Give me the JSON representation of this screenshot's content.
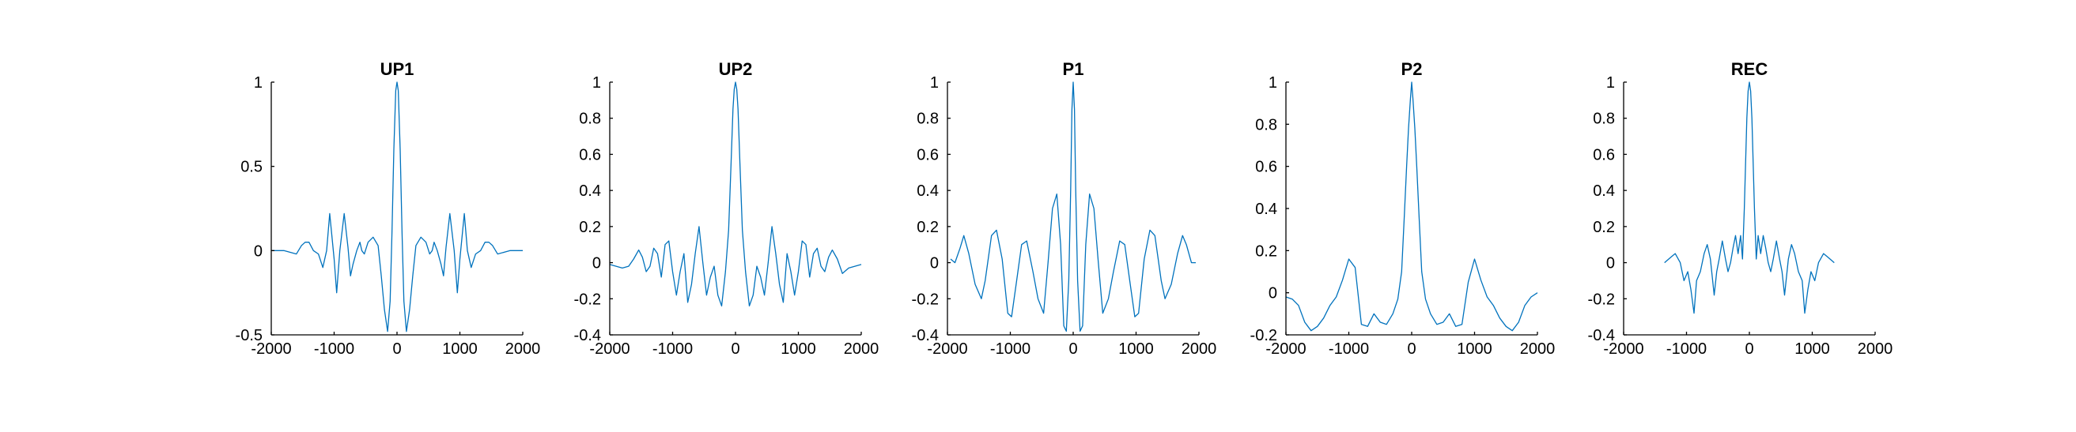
{
  "colors": {
    "series": "#0072BD",
    "axis": "#000000",
    "background": "#ffffff"
  },
  "chart_data": [
    {
      "type": "line",
      "title": "UP1",
      "xlabel": "",
      "ylabel": "",
      "grid": false,
      "xlim": [
        -2000,
        2000
      ],
      "ylim": [
        -0.5,
        1
      ],
      "xticks": [
        -2000,
        -1000,
        0,
        1000,
        2000
      ],
      "yticks": [
        -0.5,
        0,
        0.5,
        1
      ],
      "xtick_labels": [
        "-2000",
        "-1000",
        "0",
        "1000",
        "2000"
      ],
      "ytick_labels": [
        "-0.5",
        "0",
        "0.5",
        "1"
      ],
      "series": [
        {
          "x": [
            -2000,
            -1800,
            -1600,
            -1520,
            -1460,
            -1400,
            -1330,
            -1250,
            -1180,
            -1120,
            -1070,
            -1000,
            -960,
            -910,
            -840,
            -780,
            -740,
            -700,
            -640,
            -590,
            -560,
            -520,
            -460,
            -380,
            -300,
            -250,
            -200,
            -150,
            -110,
            -80,
            -50,
            -20,
            0,
            20,
            50,
            80,
            110,
            150,
            200,
            250,
            300,
            380,
            460,
            520,
            560,
            590,
            640,
            700,
            740,
            780,
            840,
            910,
            960,
            1000,
            1070,
            1120,
            1180,
            1250,
            1330,
            1400,
            1460,
            1520,
            1600,
            1800,
            2000
          ],
          "y": [
            0,
            0,
            -0.02,
            0.03,
            0.05,
            0.05,
            0.0,
            -0.02,
            -0.1,
            0.0,
            0.22,
            -0.05,
            -0.25,
            0.0,
            0.22,
            0.02,
            -0.15,
            -0.08,
            0.0,
            0.05,
            0.0,
            -0.02,
            0.05,
            0.08,
            0.03,
            -0.15,
            -0.35,
            -0.48,
            -0.3,
            0.1,
            0.6,
            0.95,
            1.0,
            0.95,
            0.6,
            0.1,
            -0.3,
            -0.48,
            -0.35,
            -0.15,
            0.03,
            0.08,
            0.05,
            -0.02,
            0.0,
            0.05,
            0.0,
            -0.08,
            -0.15,
            0.02,
            0.22,
            0.0,
            -0.25,
            -0.05,
            0.22,
            0.0,
            -0.1,
            -0.02,
            0.0,
            0.05,
            0.05,
            0.03,
            -0.02,
            0,
            0
          ]
        }
      ]
    },
    {
      "type": "line",
      "title": "UP2",
      "xlabel": "",
      "ylabel": "",
      "grid": false,
      "xlim": [
        -2000,
        2000
      ],
      "ylim": [
        -0.4,
        1
      ],
      "xticks": [
        -2000,
        -1000,
        0,
        1000,
        2000
      ],
      "yticks": [
        -0.4,
        -0.2,
        0,
        0.2,
        0.4,
        0.6,
        0.8,
        1
      ],
      "xtick_labels": [
        "-2000",
        "-1000",
        "0",
        "1000",
        "2000"
      ],
      "ytick_labels": [
        "-0.4",
        "-0.2",
        "0",
        "0.2",
        "0.4",
        "0.6",
        "0.8",
        "1"
      ],
      "series": [
        {
          "x": [
            -2000,
            -1900,
            -1800,
            -1700,
            -1620,
            -1540,
            -1480,
            -1420,
            -1360,
            -1300,
            -1240,
            -1180,
            -1120,
            -1060,
            -1000,
            -940,
            -880,
            -820,
            -760,
            -700,
            -640,
            -580,
            -520,
            -460,
            -400,
            -340,
            -280,
            -220,
            -160,
            -110,
            -70,
            -40,
            -20,
            0,
            20,
            40,
            70,
            110,
            160,
            220,
            280,
            340,
            400,
            460,
            520,
            580,
            640,
            700,
            760,
            820,
            880,
            940,
            1000,
            1060,
            1120,
            1180,
            1240,
            1300,
            1360,
            1420,
            1480,
            1540,
            1620,
            1700,
            1800,
            1900,
            2000
          ],
          "y": [
            -0.01,
            -0.02,
            -0.03,
            -0.02,
            0.02,
            0.07,
            0.03,
            -0.05,
            -0.02,
            0.08,
            0.05,
            -0.08,
            0.1,
            0.12,
            -0.05,
            -0.18,
            -0.05,
            0.05,
            -0.22,
            -0.12,
            0.05,
            0.2,
            0.0,
            -0.18,
            -0.08,
            -0.02,
            -0.18,
            -0.24,
            -0.05,
            0.18,
            0.55,
            0.85,
            0.96,
            1.0,
            0.96,
            0.85,
            0.55,
            0.18,
            -0.05,
            -0.24,
            -0.18,
            -0.02,
            -0.08,
            -0.18,
            0.0,
            0.2,
            0.05,
            -0.12,
            -0.22,
            0.05,
            -0.05,
            -0.18,
            -0.05,
            0.12,
            0.1,
            -0.08,
            0.05,
            0.08,
            -0.02,
            -0.05,
            0.03,
            0.07,
            0.02,
            -0.06,
            -0.03,
            -0.02,
            -0.01
          ]
        }
      ]
    },
    {
      "type": "line",
      "title": "P1",
      "xlabel": "",
      "ylabel": "",
      "grid": false,
      "xlim": [
        -2000,
        2000
      ],
      "ylim": [
        -0.4,
        1
      ],
      "xticks": [
        -2000,
        -1000,
        0,
        1000,
        2000
      ],
      "yticks": [
        -0.4,
        -0.2,
        0,
        0.2,
        0.4,
        0.6,
        0.8,
        1
      ],
      "xtick_labels": [
        "-2000",
        "-1000",
        "0",
        "1000",
        "2000"
      ],
      "ytick_labels": [
        "-0.4",
        "-0.2",
        "0",
        "0.2",
        "0.4",
        "0.6",
        "0.8",
        "1"
      ],
      "series": [
        {
          "x": [
            -1950,
            -1880,
            -1800,
            -1740,
            -1660,
            -1560,
            -1460,
            -1400,
            -1300,
            -1220,
            -1130,
            -1040,
            -980,
            -900,
            -820,
            -740,
            -640,
            -560,
            -470,
            -400,
            -330,
            -260,
            -200,
            -150,
            -110,
            -70,
            -40,
            -20,
            0,
            20,
            40,
            70,
            110,
            150,
            200,
            260,
            330,
            400,
            470,
            560,
            640,
            740,
            820,
            900,
            980,
            1040,
            1130,
            1220,
            1300,
            1400,
            1460,
            1560,
            1660,
            1740,
            1800,
            1880,
            1950
          ],
          "y": [
            0.02,
            0.0,
            0.08,
            0.15,
            0.05,
            -0.12,
            -0.2,
            -0.1,
            0.15,
            0.18,
            0.02,
            -0.28,
            -0.3,
            -0.1,
            0.1,
            0.12,
            -0.05,
            -0.2,
            -0.28,
            0.0,
            0.3,
            0.38,
            0.1,
            -0.35,
            -0.38,
            -0.1,
            0.4,
            0.85,
            1.0,
            0.85,
            0.4,
            -0.1,
            -0.38,
            -0.35,
            0.1,
            0.38,
            0.3,
            0.0,
            -0.28,
            -0.2,
            -0.05,
            0.12,
            0.1,
            -0.1,
            -0.3,
            -0.28,
            0.02,
            0.18,
            0.15,
            -0.1,
            -0.2,
            -0.12,
            0.05,
            0.15,
            0.1,
            0.0,
            0.0
          ]
        }
      ]
    },
    {
      "type": "line",
      "title": "P2",
      "xlabel": "",
      "ylabel": "",
      "grid": false,
      "xlim": [
        -2000,
        2000
      ],
      "ylim": [
        -0.2,
        1
      ],
      "xticks": [
        -2000,
        -1000,
        0,
        1000,
        2000
      ],
      "yticks": [
        -0.2,
        0,
        0.2,
        0.4,
        0.6,
        0.8,
        1
      ],
      "xtick_labels": [
        "-2000",
        "-1000",
        "0",
        "1000",
        "2000"
      ],
      "ytick_labels": [
        "-0.2",
        "0",
        "0.2",
        "0.4",
        "0.6",
        "0.8",
        "1"
      ],
      "series": [
        {
          "x": [
            -2000,
            -1900,
            -1800,
            -1700,
            -1600,
            -1500,
            -1400,
            -1300,
            -1200,
            -1100,
            -1000,
            -900,
            -800,
            -700,
            -600,
            -500,
            -400,
            -300,
            -220,
            -160,
            -120,
            -80,
            -50,
            -20,
            0,
            20,
            50,
            80,
            120,
            160,
            220,
            300,
            400,
            500,
            600,
            700,
            800,
            900,
            1000,
            1100,
            1200,
            1300,
            1400,
            1500,
            1600,
            1700,
            1800,
            1900,
            2000
          ],
          "y": [
            -0.02,
            -0.03,
            -0.06,
            -0.14,
            -0.18,
            -0.16,
            -0.12,
            -0.06,
            -0.02,
            0.06,
            0.16,
            0.12,
            -0.15,
            -0.16,
            -0.1,
            -0.14,
            -0.15,
            -0.1,
            -0.03,
            0.1,
            0.35,
            0.6,
            0.78,
            0.92,
            1.0,
            0.92,
            0.78,
            0.6,
            0.35,
            0.1,
            -0.03,
            -0.1,
            -0.15,
            -0.14,
            -0.1,
            -0.16,
            -0.15,
            0.05,
            0.16,
            0.06,
            -0.02,
            -0.06,
            -0.12,
            -0.16,
            -0.18,
            -0.14,
            -0.06,
            -0.02,
            0.0
          ]
        }
      ]
    },
    {
      "type": "line",
      "title": "REC",
      "xlabel": "",
      "ylabel": "",
      "grid": false,
      "xlim": [
        -2000,
        2000
      ],
      "ylim": [
        -0.4,
        1
      ],
      "xticks": [
        -2000,
        -1000,
        0,
        1000,
        2000
      ],
      "yticks": [
        -0.4,
        -0.2,
        0,
        0.2,
        0.4,
        0.6,
        0.8,
        1
      ],
      "xtick_labels": [
        "-2000",
        "-1000",
        "0",
        "1000",
        "2000"
      ],
      "ytick_labels": [
        "-0.4",
        "-0.2",
        "0",
        "0.2",
        "0.4",
        "0.6",
        "0.8",
        "1"
      ],
      "series": [
        {
          "x": [
            -1350,
            -1250,
            -1180,
            -1100,
            -1040,
            -980,
            -930,
            -880,
            -840,
            -780,
            -720,
            -670,
            -620,
            -560,
            -520,
            -480,
            -430,
            -380,
            -340,
            -300,
            -260,
            -220,
            -180,
            -140,
            -110,
            -80,
            -60,
            -40,
            -20,
            0,
            20,
            40,
            60,
            80,
            110,
            140,
            180,
            220,
            260,
            300,
            340,
            380,
            430,
            480,
            520,
            560,
            620,
            670,
            720,
            780,
            840,
            880,
            930,
            980,
            1040,
            1100,
            1180,
            1250,
            1350
          ],
          "y": [
            0.0,
            0.03,
            0.05,
            0.0,
            -0.1,
            -0.05,
            -0.15,
            -0.28,
            -0.1,
            -0.05,
            0.05,
            0.1,
            0.02,
            -0.18,
            -0.05,
            0.02,
            0.12,
            0.02,
            -0.05,
            0.0,
            0.08,
            0.15,
            0.05,
            0.15,
            0.02,
            0.3,
            0.55,
            0.8,
            0.95,
            1.0,
            0.95,
            0.8,
            0.55,
            0.3,
            0.02,
            0.15,
            0.05,
            0.15,
            0.08,
            0.0,
            -0.05,
            0.02,
            0.12,
            0.02,
            -0.05,
            -0.18,
            0.02,
            0.1,
            0.05,
            -0.05,
            -0.1,
            -0.28,
            -0.15,
            -0.05,
            -0.1,
            0.0,
            0.05,
            0.03,
            0.0
          ]
        }
      ]
    }
  ]
}
